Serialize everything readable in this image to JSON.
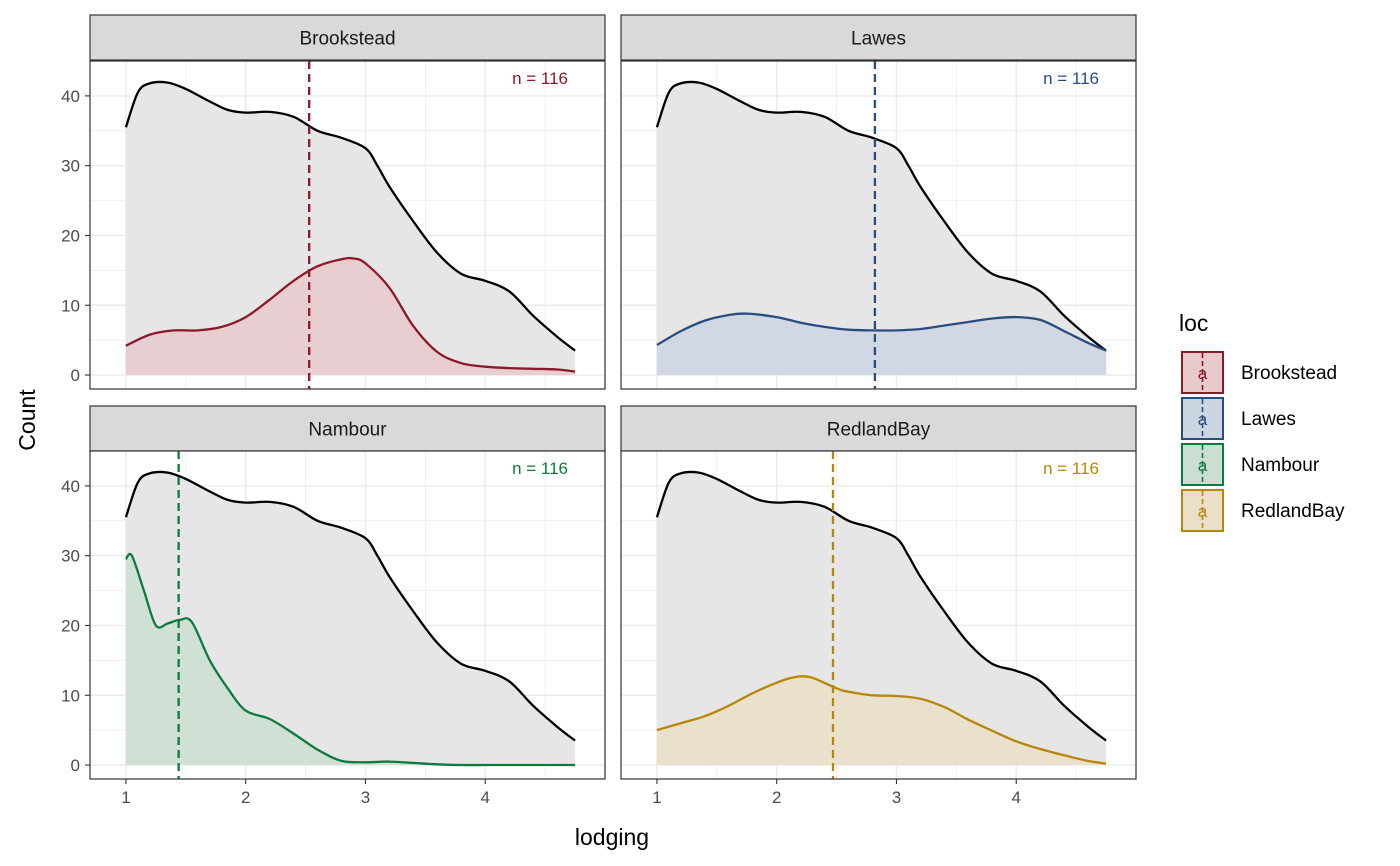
{
  "chart_data": {
    "type": "area",
    "xlabel": "lodging",
    "ylabel": "Count",
    "xlim": [
      0.7,
      5.0
    ],
    "ylim": [
      -2,
      45
    ],
    "x_ticks": [
      1,
      2,
      3,
      4
    ],
    "y_ticks": [
      0,
      10,
      20,
      30,
      40
    ],
    "grid": true,
    "legend": {
      "title": "loc",
      "placement": "right",
      "key_glyph": "a"
    },
    "overall": {
      "color": "#000000",
      "fill": "#e6e6e6",
      "x": [
        1.0,
        1.1,
        1.2,
        1.35,
        1.5,
        1.7,
        1.85,
        2.0,
        2.2,
        2.4,
        2.6,
        2.8,
        3.0,
        3.1,
        3.2,
        3.4,
        3.6,
        3.8,
        4.0,
        4.2,
        4.4,
        4.6,
        4.75
      ],
      "y": [
        35.5,
        40.5,
        41.8,
        41.9,
        41.0,
        39.2,
        38.0,
        37.6,
        37.7,
        37.0,
        35.0,
        34.0,
        32.5,
        30.0,
        27.0,
        22.0,
        17.5,
        14.5,
        13.5,
        12.0,
        8.5,
        5.5,
        3.5
      ]
    },
    "panels": [
      {
        "name": "Brookstead",
        "color": "#8b1a2a",
        "fill": "#e8c9cc",
        "n_label": "n = 116",
        "mean": 2.53,
        "x": [
          1.0,
          1.2,
          1.4,
          1.6,
          1.8,
          2.0,
          2.2,
          2.4,
          2.6,
          2.8,
          2.9,
          3.0,
          3.2,
          3.4,
          3.6,
          3.8,
          4.0,
          4.2,
          4.4,
          4.6,
          4.75
        ],
        "y": [
          4.2,
          5.8,
          6.4,
          6.4,
          6.9,
          8.3,
          10.8,
          13.5,
          15.6,
          16.6,
          16.7,
          16.0,
          12.5,
          7.0,
          3.3,
          1.7,
          1.2,
          1.0,
          0.9,
          0.8,
          0.5
        ]
      },
      {
        "name": "Lawes",
        "color": "#2a4d7f",
        "fill": "#ccd5e2",
        "n_label": "n = 116",
        "mean": 2.82,
        "x": [
          1.0,
          1.2,
          1.4,
          1.6,
          1.75,
          2.0,
          2.2,
          2.4,
          2.6,
          2.8,
          3.0,
          3.2,
          3.4,
          3.6,
          3.8,
          4.0,
          4.2,
          4.4,
          4.6,
          4.75
        ],
        "y": [
          4.3,
          6.3,
          7.8,
          8.6,
          8.8,
          8.3,
          7.5,
          6.9,
          6.5,
          6.4,
          6.4,
          6.6,
          7.1,
          7.6,
          8.1,
          8.3,
          7.9,
          6.3,
          4.6,
          3.5
        ]
      },
      {
        "name": "Nambour",
        "color": "#0f7a40",
        "fill": "#cadfd1",
        "n_label": "n = 116",
        "mean": 1.44,
        "x": [
          1.0,
          1.05,
          1.15,
          1.25,
          1.35,
          1.45,
          1.55,
          1.7,
          1.85,
          2.0,
          2.2,
          2.4,
          2.6,
          2.8,
          3.0,
          3.2,
          3.4,
          3.6,
          3.8,
          4.0,
          4.2,
          4.4,
          4.6,
          4.75
        ],
        "y": [
          29.5,
          30.0,
          25.0,
          20.0,
          20.3,
          20.8,
          20.5,
          15.0,
          11.0,
          7.8,
          6.6,
          4.5,
          2.2,
          0.6,
          0.4,
          0.5,
          0.3,
          0.1,
          0.0,
          0.0,
          0.0,
          0.0,
          0.0,
          0.0
        ]
      },
      {
        "name": "RedlandBay",
        "color": "#b8860b",
        "fill": "#eadfc8",
        "n_label": "n = 116",
        "mean": 2.47,
        "x": [
          1.0,
          1.2,
          1.4,
          1.6,
          1.8,
          2.0,
          2.1,
          2.2,
          2.3,
          2.5,
          2.6,
          2.8,
          3.0,
          3.2,
          3.4,
          3.6,
          3.8,
          4.0,
          4.2,
          4.4,
          4.6,
          4.75
        ],
        "y": [
          5.0,
          6.0,
          7.0,
          8.5,
          10.3,
          11.8,
          12.4,
          12.7,
          12.5,
          11.0,
          10.5,
          10.0,
          9.9,
          9.5,
          8.3,
          6.5,
          4.9,
          3.4,
          2.3,
          1.4,
          0.6,
          0.2
        ]
      }
    ]
  }
}
